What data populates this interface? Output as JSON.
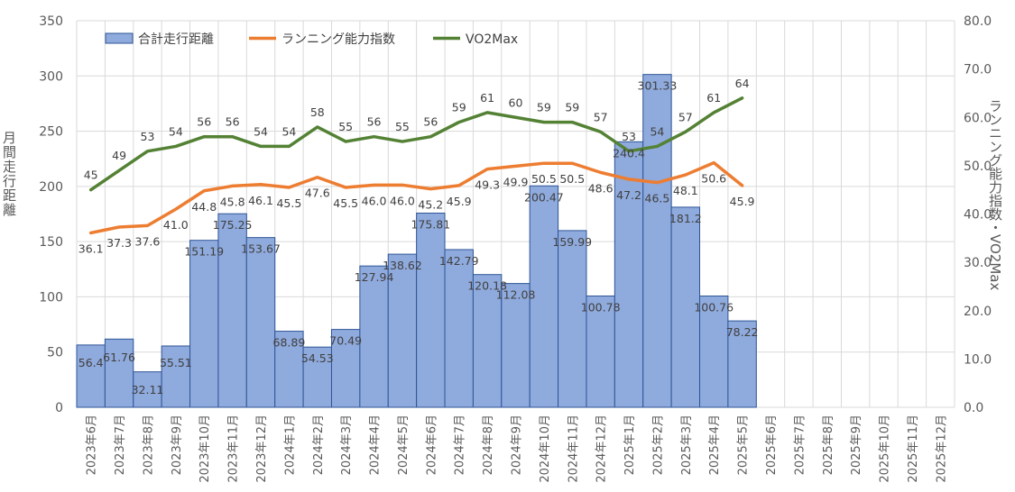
{
  "chart_data": {
    "type": "bar+line",
    "categories": [
      "2023年6月",
      "2023年7月",
      "2023年8月",
      "2023年9月",
      "2023年10月",
      "2023年11月",
      "2023年12月",
      "2024年1月",
      "2024年2月",
      "2024年3月",
      "2024年4月",
      "2024年5月",
      "2024年6月",
      "2024年7月",
      "2024年8月",
      "2024年9月",
      "2024年10月",
      "2024年11月",
      "2024年12月",
      "2025年1月",
      "2025年2月",
      "2025年3月",
      "2025年4月",
      "2025年5月",
      "2025年6月",
      "2025年7月",
      "2025年8月",
      "2025年9月",
      "2025年10月",
      "2025年11月",
      "2025年12月"
    ],
    "bar_series": {
      "name": "合計走行距離",
      "color": "#8faadc",
      "values": [
        56.4,
        61.76,
        32.11,
        55.51,
        151.19,
        175.25,
        153.67,
        68.89,
        54.53,
        70.49,
        127.94,
        138.62,
        175.81,
        142.79,
        120.18,
        112.08,
        200.47,
        159.99,
        100.78,
        240.4,
        301.33,
        181.2,
        100.76,
        78.22
      ],
      "labels": [
        "56.4",
        "61.76",
        "32.11",
        "55.51",
        "151.19",
        "175.25",
        "153.67",
        "68.89",
        "54.53",
        "70.49",
        "127.94",
        "138.62",
        "175.81",
        "142.79",
        "120.18",
        "112.08",
        "200.47",
        "159.99",
        "100.78",
        "240.4",
        "301.33",
        "181.2",
        "100.76",
        "78.22"
      ]
    },
    "line_series": [
      {
        "name": "ランニング能力指数",
        "color": "#ed7d31",
        "values": [
          36.1,
          37.3,
          37.6,
          41.0,
          44.8,
          45.8,
          46.1,
          45.5,
          47.6,
          45.5,
          46.0,
          46.0,
          45.2,
          45.9,
          49.3,
          49.9,
          50.5,
          50.5,
          48.6,
          47.2,
          46.5,
          48.1,
          50.6,
          45.9
        ],
        "labels": [
          "36.1",
          "37.3",
          "37.6",
          "41.0",
          "44.8",
          "45.8",
          "46.1",
          "45.5",
          "47.6",
          "45.5",
          "46.0",
          "46.0",
          "45.2",
          "45.9",
          "49.3",
          "49.9",
          "50.5",
          "50.5",
          "48.6",
          "47.2",
          "46.5",
          "48.1",
          "50.6",
          "45.9"
        ]
      },
      {
        "name": "VO2Max",
        "color": "#548235",
        "values": [
          45,
          49,
          53,
          54,
          56,
          56,
          54,
          54,
          58,
          55,
          56,
          55,
          56,
          59,
          61,
          60,
          59,
          59,
          57,
          53,
          54,
          57,
          61,
          64
        ],
        "labels": [
          "45",
          "49",
          "53",
          "54",
          "56",
          "56",
          "54",
          "54",
          "58",
          "55",
          "56",
          "55",
          "56",
          "59",
          "61",
          "60",
          "59",
          "59",
          "57",
          "53",
          "54",
          "57",
          "61",
          "64"
        ]
      }
    ],
    "y_left": {
      "label": "月間走行距離",
      "min": 0,
      "max": 350,
      "ticks": [
        "0",
        "50",
        "100",
        "150",
        "200",
        "250",
        "300",
        "350"
      ]
    },
    "y_right": {
      "label": "ランニング能力指数・VO2Max",
      "min": 0,
      "max": 80,
      "ticks": [
        "0.0",
        "10.0",
        "20.0",
        "30.0",
        "40.0",
        "50.0",
        "60.0",
        "70.0",
        "80.0"
      ]
    },
    "grid": true,
    "legend_position": "top-left"
  }
}
